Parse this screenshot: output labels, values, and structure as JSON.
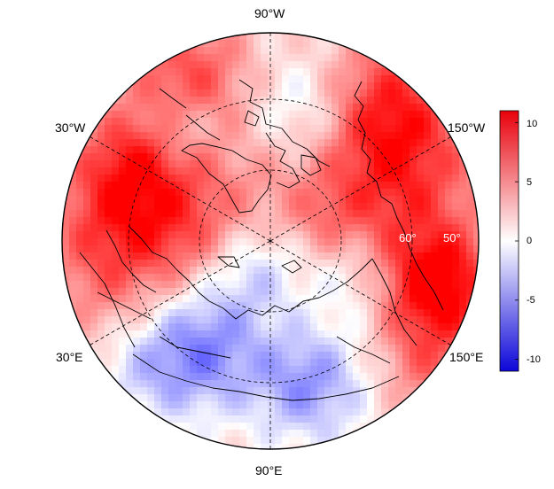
{
  "map": {
    "projection": "north polar stereographic",
    "longitude_labels": {
      "top": "90°W",
      "upper_left": "30°W",
      "upper_right": "150°W",
      "lower_left": "30°E",
      "lower_right": "150°E",
      "bottom": "90°E"
    },
    "latitude_labels": [
      "60°",
      "50°"
    ],
    "colormap": {
      "negative": "#0000ff",
      "zero": "#ffffff",
      "positive": "#ff0000"
    }
  },
  "colorbar": {
    "min": -11,
    "max": 11,
    "ticks": [
      {
        "value": 10,
        "label": "10"
      },
      {
        "value": 5,
        "label": "5"
      },
      {
        "value": 0,
        "label": "0"
      },
      {
        "value": -5,
        "label": "-5"
      },
      {
        "value": -10,
        "label": "-10"
      }
    ]
  }
}
